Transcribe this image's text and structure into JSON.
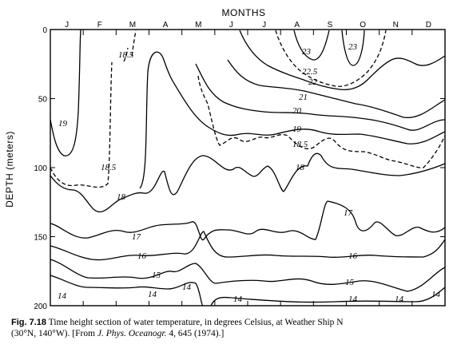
{
  "chart_data": {
    "type": "contour",
    "title": "MONTHS",
    "xlabel": "MONTHS",
    "ylabel": "DEPTH (meters)",
    "months": [
      "J",
      "F",
      "M",
      "A",
      "M",
      "J",
      "J",
      "A",
      "S",
      "O",
      "N",
      "D"
    ],
    "y_ticks": [
      0,
      50,
      100,
      150,
      200
    ],
    "ylim": [
      0,
      200
    ],
    "y_reversed": true,
    "isotherm_labels": [
      "23",
      "23",
      "22.5",
      "22",
      "21",
      "20",
      "19",
      "19",
      "18.5",
      "18.5",
      "18.5",
      "18",
      "18",
      "17",
      "17",
      "16",
      "16",
      "15",
      "15",
      "14",
      "14",
      "14",
      "14",
      "14",
      "14",
      "14"
    ],
    "contours": [
      {
        "value": 14,
        "label": "14",
        "dashed": false,
        "depth_by_month": [
          188,
          187,
          192,
          196,
          195,
          196,
          196,
          195,
          194,
          192,
          191,
          188
        ]
      },
      {
        "value": 15,
        "label": "15",
        "dashed": false,
        "depth_by_month": [
          170,
          172,
          178,
          180,
          178,
          180,
          178,
          178,
          175,
          177,
          180,
          175
        ]
      },
      {
        "value": 16,
        "label": "16",
        "dashed": false,
        "depth_by_month": [
          160,
          162,
          165,
          163,
          160,
          162,
          160,
          162,
          160,
          162,
          163,
          160
        ]
      },
      {
        "value": 17,
        "label": "17",
        "dashed": false,
        "depth_by_month": [
          140,
          145,
          150,
          148,
          140,
          145,
          148,
          145,
          135,
          140,
          145,
          138
        ]
      },
      {
        "value": 18,
        "label": "18",
        "dashed": false,
        "depth_by_month": [
          120,
          125,
          118,
          115,
          105,
          108,
          110,
          112,
          100,
          112,
          118,
          105
        ]
      },
      {
        "value": 18.5,
        "label": "18.5",
        "dashed": true,
        "depth_by_month": [
          115,
          122,
          95,
          60,
          85,
          90,
          88,
          85,
          80,
          92,
          98,
          95
        ]
      },
      {
        "value": 19,
        "label": "19",
        "dashed": false,
        "depth_by_month": [
          85,
          80,
          15,
          12,
          55,
          72,
          75,
          70,
          65,
          75,
          85,
          75
        ]
      },
      {
        "value": 20,
        "label": "20",
        "dashed": false,
        "depth_by_month": [
          null,
          null,
          null,
          null,
          null,
          45,
          60,
          58,
          52,
          62,
          72,
          62
        ]
      },
      {
        "value": 21,
        "label": "21",
        "dashed": false,
        "depth_by_month": [
          null,
          null,
          null,
          null,
          null,
          20,
          38,
          42,
          40,
          50,
          60,
          50
        ]
      },
      {
        "value": 22,
        "label": "22",
        "dashed": false,
        "depth_by_month": [
          null,
          null,
          null,
          null,
          null,
          null,
          15,
          28,
          32,
          38,
          30,
          null
        ]
      },
      {
        "value": 22.5,
        "label": "22.5",
        "dashed": true,
        "depth_by_month": [
          null,
          null,
          null,
          null,
          null,
          null,
          null,
          18,
          25,
          30,
          18,
          null
        ]
      },
      {
        "value": 23,
        "label": "23",
        "dashed": false,
        "depth_by_month": [
          null,
          null,
          null,
          null,
          null,
          null,
          null,
          8,
          null,
          15,
          null,
          null
        ]
      }
    ]
  },
  "caption": {
    "label": "Fig. 7.18",
    "text1": "Time height section of water temperature, in degrees Celsius, at Weather Ship N",
    "text2": "(30°N, 140°W). [From ",
    "journal": "J. Phys. Oceanogr.",
    "text3": " 4, 645 (1974).]"
  }
}
